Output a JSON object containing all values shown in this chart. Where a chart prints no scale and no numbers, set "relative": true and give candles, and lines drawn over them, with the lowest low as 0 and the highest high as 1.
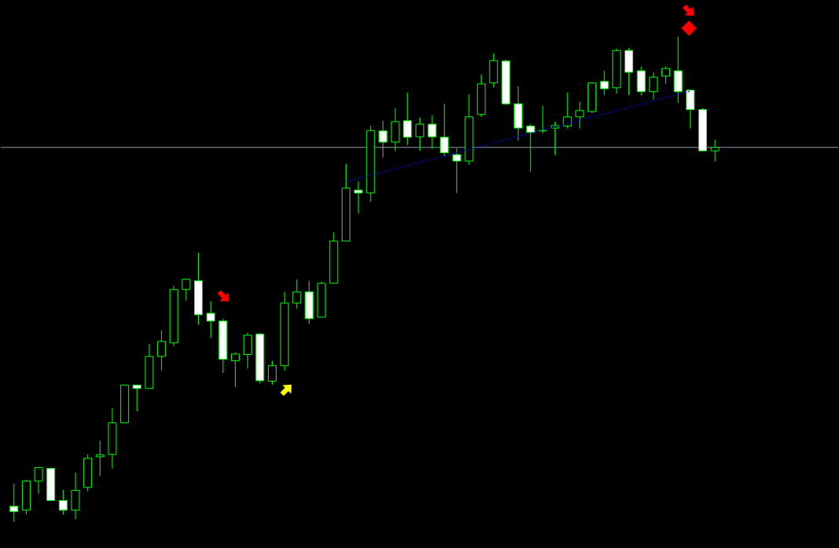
{
  "chart_data": {
    "type": "candlestick",
    "relative": true,
    "tick_labels": false,
    "color": "#00ff00",
    "categories": [
      null,
      null,
      null,
      null,
      null,
      null,
      null,
      null,
      null,
      null,
      null,
      null,
      null,
      null,
      null,
      null,
      null,
      null,
      null,
      null,
      null,
      null,
      null,
      null,
      null,
      null,
      null,
      null,
      null,
      null,
      null,
      null,
      null,
      null,
      null,
      null,
      null,
      null,
      null,
      null,
      null,
      null,
      null,
      null,
      null,
      null,
      null,
      null,
      null,
      null,
      null,
      null,
      null,
      null,
      null,
      null,
      null,
      null
    ],
    "ohlc": [
      [
        0.032,
        0.079,
        0,
        0.021
      ],
      [
        0.024,
        0.087,
        0.015,
        0.084
      ],
      [
        0.084,
        0.112,
        0.058,
        0.112
      ],
      [
        0.11,
        0.11,
        0.044,
        0.044
      ],
      [
        0.044,
        0.066,
        0.015,
        0.024
      ],
      [
        0.024,
        0.102,
        0.005,
        0.065
      ],
      [
        0.071,
        0.139,
        0.063,
        0.131
      ],
      [
        0.134,
        0.167,
        0.095,
        0.138
      ],
      [
        0.139,
        0.235,
        0.11,
        0.204
      ],
      [
        0.204,
        0.282,
        0.204,
        0.282
      ],
      [
        0.282,
        0.282,
        0.228,
        0.275
      ],
      [
        0.275,
        0.367,
        0.275,
        0.341
      ],
      [
        0.341,
        0.395,
        0.312,
        0.372
      ],
      [
        0.369,
        0.487,
        0.362,
        0.479
      ],
      [
        0.479,
        0.502,
        0.456,
        0.5
      ],
      [
        0.497,
        0.555,
        0.406,
        0.427
      ],
      [
        0.43,
        0.455,
        0.379,
        0.414
      ],
      [
        0.414,
        0.419,
        0.307,
        0.335
      ],
      [
        0.332,
        0.35,
        0.278,
        0.346
      ],
      [
        0.345,
        0.39,
        0.316,
        0.385
      ],
      [
        0.387,
        0.39,
        0.285,
        0.291
      ],
      [
        0.29,
        0.332,
        0.283,
        0.322
      ],
      [
        0.322,
        0.474,
        0.312,
        0.451
      ],
      [
        0.451,
        0.5,
        0.439,
        0.474
      ],
      [
        0.474,
        0.497,
        0.408,
        0.419
      ],
      [
        0.422,
        0.495,
        0.422,
        0.492
      ],
      [
        0.492,
        0.597,
        0.492,
        0.579
      ],
      [
        0.579,
        0.738,
        0.579,
        0.688
      ],
      [
        0.684,
        0.702,
        0.636,
        0.678
      ],
      [
        0.678,
        0.817,
        0.66,
        0.807
      ],
      [
        0.806,
        0.827,
        0.751,
        0.783
      ],
      [
        0.783,
        0.853,
        0.764,
        0.825
      ],
      [
        0.827,
        0.885,
        0.777,
        0.793
      ],
      [
        0.794,
        0.833,
        0.765,
        0.82
      ],
      [
        0.82,
        0.838,
        0.769,
        0.794
      ],
      [
        0.793,
        0.862,
        0.754,
        0.761
      ],
      [
        0.757,
        0.77,
        0.678,
        0.744
      ],
      [
        0.744,
        0.882,
        0.736,
        0.835
      ],
      [
        0.84,
        0.922,
        0.835,
        0.903
      ],
      [
        0.905,
        0.966,
        0.896,
        0.951
      ],
      [
        0.95,
        0.953,
        0.859,
        0.862
      ],
      [
        0.862,
        0.898,
        0.786,
        0.812
      ],
      [
        0.816,
        0.82,
        0.722,
        0.803
      ],
      [
        0.806,
        0.858,
        0.801,
        0.807
      ],
      [
        0.812,
        0.825,
        0.756,
        0.817
      ],
      [
        0.816,
        0.885,
        0.811,
        0.835
      ],
      [
        0.835,
        0.866,
        0.811,
        0.848
      ],
      [
        0.846,
        0.905,
        0.843,
        0.905
      ],
      [
        0.908,
        0.93,
        0.88,
        0.893
      ],
      [
        0.895,
        0.976,
        0.883,
        0.972
      ],
      [
        0.972,
        0.977,
        0.88,
        0.927
      ],
      [
        0.93,
        0.939,
        0.879,
        0.887
      ],
      [
        0.887,
        0.927,
        0.871,
        0.917
      ],
      [
        0.919,
        0.939,
        0.903,
        0.935
      ],
      [
        0.93,
        1.0,
        0.864,
        0.887
      ],
      [
        0.89,
        0.89,
        0.811,
        0.85
      ],
      [
        0.85,
        0.853,
        0.765,
        0.765
      ],
      [
        0.765,
        0.788,
        0.743,
        0.772
      ]
    ],
    "series": [
      {
        "type": "line",
        "color": "#0000ff",
        "line_style": "dotted",
        "values": [
          null,
          null,
          null,
          null,
          null,
          null,
          null,
          null,
          null,
          null,
          null,
          null,
          null,
          null,
          null,
          null,
          null,
          null,
          null,
          null,
          null,
          null,
          null,
          null,
          null,
          null,
          null,
          0.701,
          null,
          null,
          null,
          null,
          null,
          null,
          null,
          null,
          null,
          null,
          null,
          null,
          null,
          null,
          null,
          null,
          null,
          null,
          null,
          null,
          null,
          null,
          null,
          null,
          null,
          null,
          null,
          0.888,
          null,
          null
        ]
      }
    ],
    "ref_lines": [
      {
        "axis": "y",
        "value": 0.772,
        "color": "#8a9aa9"
      }
    ]
  }
}
